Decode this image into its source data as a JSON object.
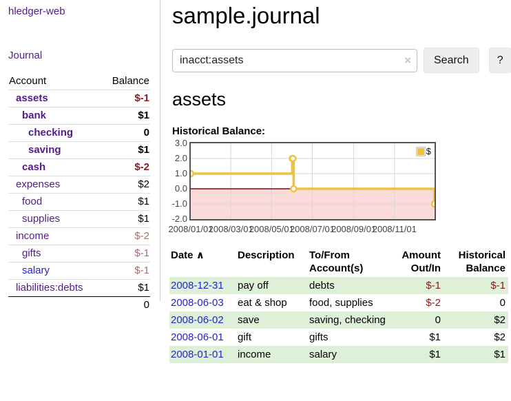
{
  "app": {
    "brand": "hledger-web",
    "nav_journal": "Journal"
  },
  "sidebar": {
    "header": {
      "account": "Account",
      "balance": "Balance"
    },
    "accounts": [
      {
        "name": "assets",
        "balance": "$-1"
      },
      {
        "name": "bank",
        "balance": "$1"
      },
      {
        "name": "checking",
        "balance": "0"
      },
      {
        "name": "saving",
        "balance": "$1"
      },
      {
        "name": "cash",
        "balance": "$-2"
      },
      {
        "name": "expenses",
        "balance": "$2"
      },
      {
        "name": "food",
        "balance": "$1"
      },
      {
        "name": "supplies",
        "balance": "$1"
      },
      {
        "name": "income",
        "balance": "$-2"
      },
      {
        "name": "gifts",
        "balance": "$-1"
      },
      {
        "name": "salary",
        "balance": "$-1"
      },
      {
        "name": "liabilities:debts",
        "balance": "$1"
      }
    ],
    "total": "0"
  },
  "main": {
    "title": "sample.journal",
    "search": {
      "value": "inacct:assets",
      "clear_icon": "×",
      "button_label": "Search",
      "help_label": "?"
    },
    "account_heading": "assets",
    "chart_label": "Historical Balance:"
  },
  "chart_data": {
    "type": "line",
    "title": "Historical Balance:",
    "steps": true,
    "line_color": "#edc240",
    "marker_fill": "#ffffff",
    "zero_line_color": "#8b0000",
    "negative_region_color": "#fbdada",
    "grid_color": "#d7d7d7",
    "legend": {
      "label": "$",
      "color": "#edc240",
      "position": "top-right"
    },
    "ylim": [
      -2,
      3
    ],
    "x_range": [
      "2008-01-01",
      "2008-12-31"
    ],
    "y_ticks": [
      {
        "label": "3.0",
        "value": 3
      },
      {
        "label": "2.0",
        "value": 2
      },
      {
        "label": "1.0",
        "value": 1
      },
      {
        "label": "0.0",
        "value": 0
      },
      {
        "label": "-1.0",
        "value": -1
      },
      {
        "label": "-2.0",
        "value": -2
      }
    ],
    "x_ticks": [
      {
        "label": "2008/01/01",
        "date": "2008-01-01"
      },
      {
        "label": "2008/03/01",
        "date": "2008-03-01"
      },
      {
        "label": "2008/05/01",
        "date": "2008-05-01"
      },
      {
        "label": "2008/07/01",
        "date": "2008-07-01"
      },
      {
        "label": "2008/09/01",
        "date": "2008-09-01"
      },
      {
        "label": "2008/11/01",
        "date": "2008-11-01"
      }
    ],
    "series": [
      {
        "name": "$",
        "points": [
          {
            "date": "2008-01-01",
            "value": 1
          },
          {
            "date": "2008-06-01",
            "value": 2
          },
          {
            "date": "2008-06-02",
            "value": 2
          },
          {
            "date": "2008-06-03",
            "value": 0
          },
          {
            "date": "2008-12-31",
            "value": -1
          }
        ]
      }
    ]
  },
  "register": {
    "sort_icon": "∧",
    "headers": {
      "date": "Date",
      "description": "Description",
      "accounts": "To/From Account(s)",
      "amount": "Amount Out/In",
      "balance": "Historical Balance"
    },
    "rows": [
      {
        "date": "2008-12-31",
        "description": "pay off",
        "accounts": "debts",
        "amount": "$-1",
        "balance": "$-1"
      },
      {
        "date": "2008-06-03",
        "description": "eat & shop",
        "accounts": "food, supplies",
        "amount": "$-2",
        "balance": "0"
      },
      {
        "date": "2008-06-02",
        "description": "save",
        "accounts": "saving, checking",
        "amount": "0",
        "balance": "$2"
      },
      {
        "date": "2008-06-01",
        "description": "gift",
        "accounts": "gifts",
        "amount": "$1",
        "balance": "$2"
      },
      {
        "date": "2008-01-01",
        "description": "income",
        "accounts": "salary",
        "amount": "$1",
        "balance": "$1"
      }
    ]
  }
}
